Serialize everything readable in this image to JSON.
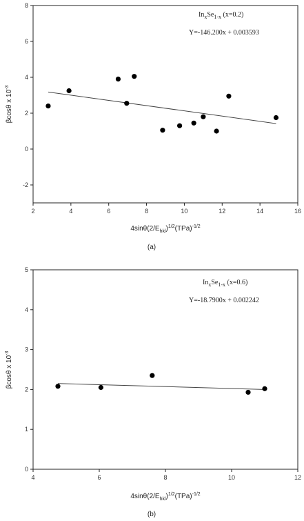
{
  "chart_data": [
    {
      "type": "scatter",
      "caption": "(a)",
      "xlabel": "4sinθ(2/E_hkl)^1/2(TPa)^-1/2",
      "ylabel": "βcosθ x 10^-3",
      "xlim": [
        2,
        16
      ],
      "ylim": [
        -3,
        8
      ],
      "xticks": [
        "2",
        "4",
        "6",
        "8",
        "10",
        "12",
        "14",
        "16"
      ],
      "yticks": [
        "8",
        "6",
        "4",
        "2",
        "0",
        "-2"
      ],
      "annotation_title": "InxSe1-x (x=0.2)",
      "annotation_equation": "Y=-146.200x + 0.003593",
      "points": [
        {
          "x": 2.8,
          "y": 2.4
        },
        {
          "x": 3.9,
          "y": 3.25
        },
        {
          "x": 6.5,
          "y": 3.9
        },
        {
          "x": 6.95,
          "y": 2.55
        },
        {
          "x": 7.35,
          "y": 4.05
        },
        {
          "x": 8.85,
          "y": 1.05
        },
        {
          "x": 9.75,
          "y": 1.3
        },
        {
          "x": 10.5,
          "y": 1.45
        },
        {
          "x": 11.0,
          "y": 1.8
        },
        {
          "x": 11.7,
          "y": 1.0
        },
        {
          "x": 12.35,
          "y": 2.95
        },
        {
          "x": 14.85,
          "y": 1.75
        }
      ],
      "fit_line": {
        "x": [
          2.8,
          14.85
        ],
        "y": [
          3.18,
          1.42
        ]
      }
    },
    {
      "type": "scatter",
      "caption": "(b)",
      "xlabel": "4sinθ(2/E_hkl)^1/2(TPa)^-1/2",
      "ylabel": "βcosθ x 10^-3",
      "xlim": [
        4,
        12
      ],
      "ylim": [
        0,
        5
      ],
      "xticks": [
        "4",
        "6",
        "8",
        "10",
        "12"
      ],
      "yticks": [
        "5",
        "4",
        "3",
        "2",
        "1",
        "0"
      ],
      "annotation_title": "InxSe1-x (x=0.6)",
      "annotation_equation": "Y=-18.7900x + 0.002242",
      "points": [
        {
          "x": 4.75,
          "y": 2.08
        },
        {
          "x": 6.05,
          "y": 2.05
        },
        {
          "x": 7.6,
          "y": 2.35
        },
        {
          "x": 10.5,
          "y": 1.93
        },
        {
          "x": 11.0,
          "y": 2.02
        }
      ],
      "fit_line": {
        "x": [
          4.75,
          11.0
        ],
        "y": [
          2.15,
          2.0
        ]
      }
    }
  ]
}
